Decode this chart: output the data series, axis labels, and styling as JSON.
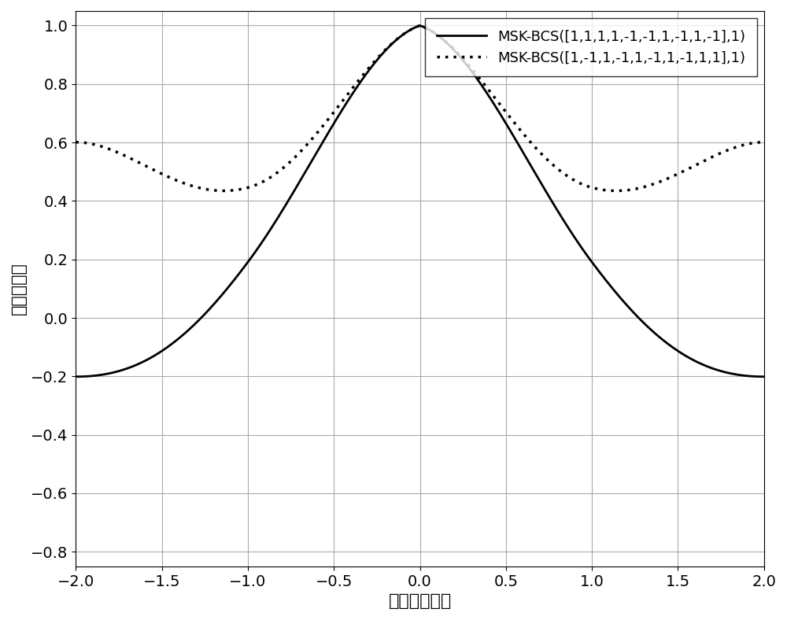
{
  "title": "",
  "xlabel": "延迟［码片］",
  "ylabel": "自相关函数",
  "xlim": [
    -2,
    2
  ],
  "ylim": [
    -0.85,
    1.05
  ],
  "xticks": [
    -2,
    -1.5,
    -1,
    -0.5,
    0,
    0.5,
    1,
    1.5,
    2
  ],
  "yticks": [
    -0.8,
    -0.6,
    -0.4,
    -0.2,
    0,
    0.2,
    0.4,
    0.6,
    0.8,
    1
  ],
  "legend1": "MSK-BCS([1,1,1,1,-1,-1,1,-1,1,-1],1)",
  "legend2": "MSK-BCS([1,-1,1,-1,1,-1,1,-1,1,1],1)",
  "code1": [
    1,
    1,
    1,
    1,
    -1,
    -1,
    1,
    -1,
    1,
    -1
  ],
  "code2": [
    1,
    -1,
    1,
    -1,
    1,
    -1,
    1,
    -1,
    1,
    1
  ],
  "samples_per_chip": 200,
  "line1_color": "#000000",
  "line2_color": "#000000",
  "background": "#ffffff",
  "grid_color": "#aaaaaa"
}
